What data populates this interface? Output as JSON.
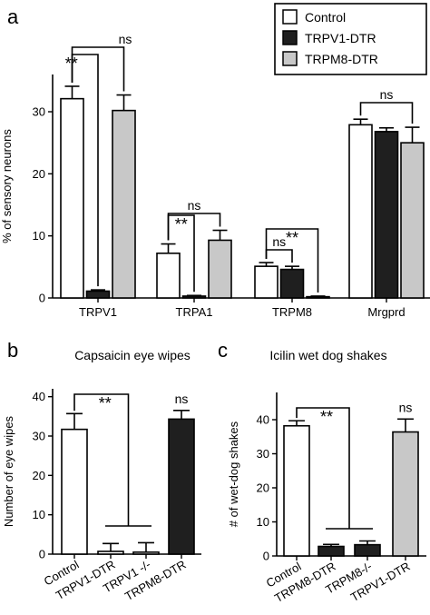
{
  "chart_data": [
    {
      "panel": "a",
      "type": "bar",
      "ylabel": "% of sensory neurons",
      "ylim": [
        0,
        36
      ],
      "yticks": [
        0,
        10,
        20,
        30
      ],
      "categories": [
        "TRPV1",
        "TRPA1",
        "TRPM8",
        "Mrgprd"
      ],
      "legend": {
        "placement": "top-right",
        "entries": [
          {
            "label": "Control",
            "color": "#ffffff"
          },
          {
            "label": "TRPV1-DTR",
            "color": "#1f1f1f"
          },
          {
            "label": "TRPM8-DTR",
            "color": "#c8c8c8"
          }
        ]
      },
      "series": [
        {
          "name": "Control",
          "color": "#ffffff",
          "values": [
            32.1,
            7.2,
            5.1,
            27.9
          ],
          "errors": [
            2.0,
            1.5,
            0.6,
            0.9
          ]
        },
        {
          "name": "TRPV1-DTR",
          "color": "#1f1f1f",
          "values": [
            1.1,
            0.3,
            4.6,
            26.8
          ],
          "errors": [
            0.2,
            0.1,
            0.5,
            0.6
          ]
        },
        {
          "name": "TRPM8-DTR",
          "color": "#c8c8c8",
          "values": [
            30.2,
            9.3,
            0.2,
            25.0
          ],
          "errors": [
            2.5,
            1.6,
            0.1,
            2.5
          ]
        }
      ],
      "comparisons": [
        {
          "group": 0,
          "from": 0,
          "to": 1,
          "label": "**"
        },
        {
          "group": 0,
          "from": 0,
          "to": 2,
          "label": "ns"
        },
        {
          "group": 1,
          "from": 0,
          "to": 1,
          "label": "**"
        },
        {
          "group": 1,
          "from": 0,
          "to": 2,
          "label": "ns"
        },
        {
          "group": 2,
          "from": 0,
          "to": 1,
          "label": "ns"
        },
        {
          "group": 2,
          "from": 0,
          "to": 2,
          "label": "**"
        },
        {
          "group": 3,
          "from": 0,
          "to": 2,
          "label": "ns"
        }
      ]
    },
    {
      "panel": "b",
      "type": "bar",
      "title": "Capsaicin eye wipes",
      "ylabel": "Number of eye wipes",
      "ylim": [
        0,
        42
      ],
      "yticks": [
        0,
        10,
        20,
        30,
        40
      ],
      "categories": [
        "Control",
        "TRPV1-DTR",
        "TRPV1 -/-",
        "TRPM8-DTR"
      ],
      "colors": [
        "#ffffff",
        "#ffffff",
        "#ffffff",
        "#1f1f1f"
      ],
      "values": [
        31.7,
        0.7,
        0.5,
        34.3
      ],
      "errors": [
        4.0,
        2.0,
        2.4,
        2.2
      ],
      "comparisons": [
        {
          "from": 0,
          "to_pair": [
            1,
            2
          ],
          "label": "**"
        },
        {
          "single": 3,
          "label": "ns"
        }
      ]
    },
    {
      "panel": "c",
      "type": "bar",
      "title": "Icilin wet dog shakes",
      "ylabel": "# of wet-dog shakes",
      "ylim": [
        0,
        48
      ],
      "yticks": [
        0,
        10,
        20,
        30,
        40
      ],
      "categories": [
        "Control",
        "TRPM8-DTR",
        "TRPM8-/-",
        "TRPV1-DTR"
      ],
      "colors": [
        "#ffffff",
        "#1f1f1f",
        "#1f1f1f",
        "#c8c8c8"
      ],
      "values": [
        38.2,
        2.8,
        3.3,
        36.4
      ],
      "errors": [
        1.5,
        0.6,
        1.1,
        3.8
      ],
      "comparisons": [
        {
          "from": 0,
          "to_pair": [
            1,
            2
          ],
          "label": "**"
        },
        {
          "single": 3,
          "label": "ns"
        }
      ]
    }
  ]
}
